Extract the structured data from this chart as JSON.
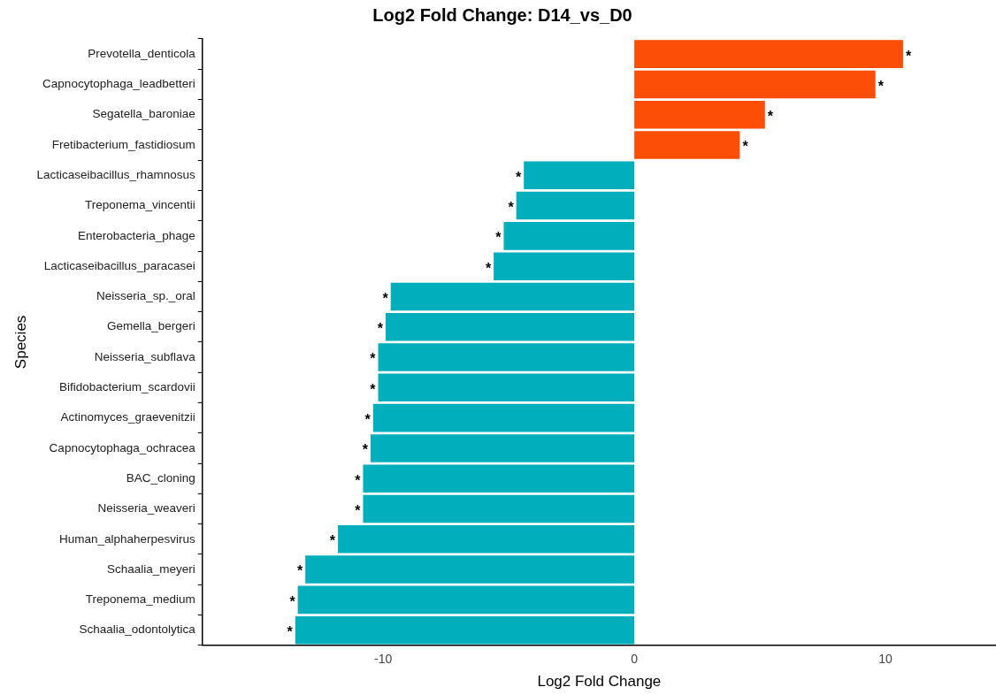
{
  "chart_data": {
    "type": "bar",
    "orientation": "horizontal",
    "title": "Log2 Fold Change: D14_vs_D0",
    "xlabel": "Log2 Fold Change",
    "ylabel": "Species",
    "categories": [
      "Prevotella_denticola",
      "Capnocytophaga_leadbetteri",
      "Segatella_baroniae",
      "Fretibacterium_fastidiosum",
      "Lacticaseibacillus_rhamnosus",
      "Treponema_vincentii",
      "Enterobacteria_phage",
      "Lacticaseibacillus_paracasei",
      "Neisseria_sp._oral",
      "Gemella_bergeri",
      "Neisseria_subflava",
      "Bifidobacterium_scardovii",
      "Actinomyces_graevenitzii",
      "Capnocytophaga_ochracea",
      "BAC_cloning",
      "Neisseria_weaveri",
      "Human_alphaherpesvirus",
      "Schaalia_meyeri",
      "Treponema_medium",
      "Schaalia_odontolytica"
    ],
    "values": [
      10.7,
      9.6,
      5.2,
      4.2,
      -4.4,
      -4.7,
      -5.2,
      -5.6,
      -9.7,
      -9.9,
      -10.2,
      -10.2,
      -10.4,
      -10.5,
      -10.8,
      -10.8,
      -11.8,
      -13.1,
      -13.4,
      -13.5
    ],
    "colors": [
      "#fc4e07",
      "#fc4e07",
      "#fc4e07",
      "#fc4e07",
      "#00afbb",
      "#00afbb",
      "#00afbb",
      "#00afbb",
      "#00afbb",
      "#00afbb",
      "#00afbb",
      "#00afbb",
      "#00afbb",
      "#00afbb",
      "#00afbb",
      "#00afbb",
      "#00afbb",
      "#00afbb",
      "#00afbb",
      "#00afbb"
    ],
    "value_labels": [
      "*",
      "*",
      "*",
      "*",
      "*",
      "*",
      "*",
      "*",
      "*",
      "*",
      "*",
      "*",
      "*",
      "*",
      "*",
      "*",
      "*",
      "*",
      "*",
      "*"
    ],
    "xlim": [
      -17.2,
      14.4
    ],
    "xticks": [
      -10,
      0,
      10
    ],
    "grid": false,
    "legend": false
  }
}
